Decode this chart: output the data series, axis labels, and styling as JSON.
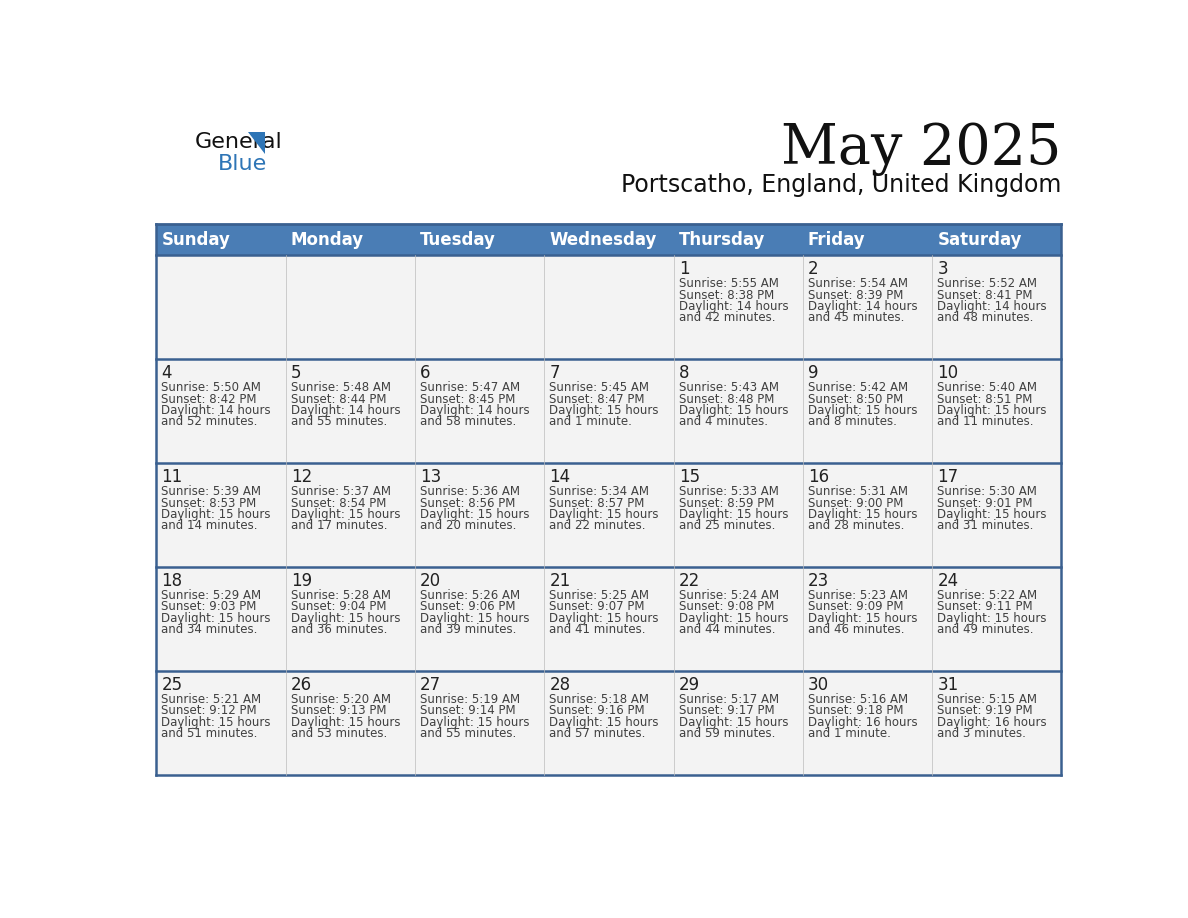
{
  "title": "May 2025",
  "subtitle": "Portscatho, England, United Kingdom",
  "days_of_week": [
    "Sunday",
    "Monday",
    "Tuesday",
    "Wednesday",
    "Thursday",
    "Friday",
    "Saturday"
  ],
  "header_bg": "#4A7DB5",
  "header_text": "#FFFFFF",
  "cell_bg": "#F3F3F3",
  "border_color": "#3A6090",
  "text_color": "#404040",
  "day_num_color": "#222222",
  "triangle_color": "#2E75B6",
  "blue_text_color": "#2E75B6",
  "calendar_data": [
    [
      null,
      null,
      null,
      null,
      {
        "day": 1,
        "sunrise": "5:55 AM",
        "sunset": "8:38 PM",
        "daylight_a": "Daylight: 14 hours",
        "daylight_b": "and 42 minutes."
      },
      {
        "day": 2,
        "sunrise": "5:54 AM",
        "sunset": "8:39 PM",
        "daylight_a": "Daylight: 14 hours",
        "daylight_b": "and 45 minutes."
      },
      {
        "day": 3,
        "sunrise": "5:52 AM",
        "sunset": "8:41 PM",
        "daylight_a": "Daylight: 14 hours",
        "daylight_b": "and 48 minutes."
      }
    ],
    [
      {
        "day": 4,
        "sunrise": "5:50 AM",
        "sunset": "8:42 PM",
        "daylight_a": "Daylight: 14 hours",
        "daylight_b": "and 52 minutes."
      },
      {
        "day": 5,
        "sunrise": "5:48 AM",
        "sunset": "8:44 PM",
        "daylight_a": "Daylight: 14 hours",
        "daylight_b": "and 55 minutes."
      },
      {
        "day": 6,
        "sunrise": "5:47 AM",
        "sunset": "8:45 PM",
        "daylight_a": "Daylight: 14 hours",
        "daylight_b": "and 58 minutes."
      },
      {
        "day": 7,
        "sunrise": "5:45 AM",
        "sunset": "8:47 PM",
        "daylight_a": "Daylight: 15 hours",
        "daylight_b": "and 1 minute."
      },
      {
        "day": 8,
        "sunrise": "5:43 AM",
        "sunset": "8:48 PM",
        "daylight_a": "Daylight: 15 hours",
        "daylight_b": "and 4 minutes."
      },
      {
        "day": 9,
        "sunrise": "5:42 AM",
        "sunset": "8:50 PM",
        "daylight_a": "Daylight: 15 hours",
        "daylight_b": "and 8 minutes."
      },
      {
        "day": 10,
        "sunrise": "5:40 AM",
        "sunset": "8:51 PM",
        "daylight_a": "Daylight: 15 hours",
        "daylight_b": "and 11 minutes."
      }
    ],
    [
      {
        "day": 11,
        "sunrise": "5:39 AM",
        "sunset": "8:53 PM",
        "daylight_a": "Daylight: 15 hours",
        "daylight_b": "and 14 minutes."
      },
      {
        "day": 12,
        "sunrise": "5:37 AM",
        "sunset": "8:54 PM",
        "daylight_a": "Daylight: 15 hours",
        "daylight_b": "and 17 minutes."
      },
      {
        "day": 13,
        "sunrise": "5:36 AM",
        "sunset": "8:56 PM",
        "daylight_a": "Daylight: 15 hours",
        "daylight_b": "and 20 minutes."
      },
      {
        "day": 14,
        "sunrise": "5:34 AM",
        "sunset": "8:57 PM",
        "daylight_a": "Daylight: 15 hours",
        "daylight_b": "and 22 minutes."
      },
      {
        "day": 15,
        "sunrise": "5:33 AM",
        "sunset": "8:59 PM",
        "daylight_a": "Daylight: 15 hours",
        "daylight_b": "and 25 minutes."
      },
      {
        "day": 16,
        "sunrise": "5:31 AM",
        "sunset": "9:00 PM",
        "daylight_a": "Daylight: 15 hours",
        "daylight_b": "and 28 minutes."
      },
      {
        "day": 17,
        "sunrise": "5:30 AM",
        "sunset": "9:01 PM",
        "daylight_a": "Daylight: 15 hours",
        "daylight_b": "and 31 minutes."
      }
    ],
    [
      {
        "day": 18,
        "sunrise": "5:29 AM",
        "sunset": "9:03 PM",
        "daylight_a": "Daylight: 15 hours",
        "daylight_b": "and 34 minutes."
      },
      {
        "day": 19,
        "sunrise": "5:28 AM",
        "sunset": "9:04 PM",
        "daylight_a": "Daylight: 15 hours",
        "daylight_b": "and 36 minutes."
      },
      {
        "day": 20,
        "sunrise": "5:26 AM",
        "sunset": "9:06 PM",
        "daylight_a": "Daylight: 15 hours",
        "daylight_b": "and 39 minutes."
      },
      {
        "day": 21,
        "sunrise": "5:25 AM",
        "sunset": "9:07 PM",
        "daylight_a": "Daylight: 15 hours",
        "daylight_b": "and 41 minutes."
      },
      {
        "day": 22,
        "sunrise": "5:24 AM",
        "sunset": "9:08 PM",
        "daylight_a": "Daylight: 15 hours",
        "daylight_b": "and 44 minutes."
      },
      {
        "day": 23,
        "sunrise": "5:23 AM",
        "sunset": "9:09 PM",
        "daylight_a": "Daylight: 15 hours",
        "daylight_b": "and 46 minutes."
      },
      {
        "day": 24,
        "sunrise": "5:22 AM",
        "sunset": "9:11 PM",
        "daylight_a": "Daylight: 15 hours",
        "daylight_b": "and 49 minutes."
      }
    ],
    [
      {
        "day": 25,
        "sunrise": "5:21 AM",
        "sunset": "9:12 PM",
        "daylight_a": "Daylight: 15 hours",
        "daylight_b": "and 51 minutes."
      },
      {
        "day": 26,
        "sunrise": "5:20 AM",
        "sunset": "9:13 PM",
        "daylight_a": "Daylight: 15 hours",
        "daylight_b": "and 53 minutes."
      },
      {
        "day": 27,
        "sunrise": "5:19 AM",
        "sunset": "9:14 PM",
        "daylight_a": "Daylight: 15 hours",
        "daylight_b": "and 55 minutes."
      },
      {
        "day": 28,
        "sunrise": "5:18 AM",
        "sunset": "9:16 PM",
        "daylight_a": "Daylight: 15 hours",
        "daylight_b": "and 57 minutes."
      },
      {
        "day": 29,
        "sunrise": "5:17 AM",
        "sunset": "9:17 PM",
        "daylight_a": "Daylight: 15 hours",
        "daylight_b": "and 59 minutes."
      },
      {
        "day": 30,
        "sunrise": "5:16 AM",
        "sunset": "9:18 PM",
        "daylight_a": "Daylight: 16 hours",
        "daylight_b": "and 1 minute."
      },
      {
        "day": 31,
        "sunrise": "5:15 AM",
        "sunset": "9:19 PM",
        "daylight_a": "Daylight: 16 hours",
        "daylight_b": "and 3 minutes."
      }
    ]
  ]
}
